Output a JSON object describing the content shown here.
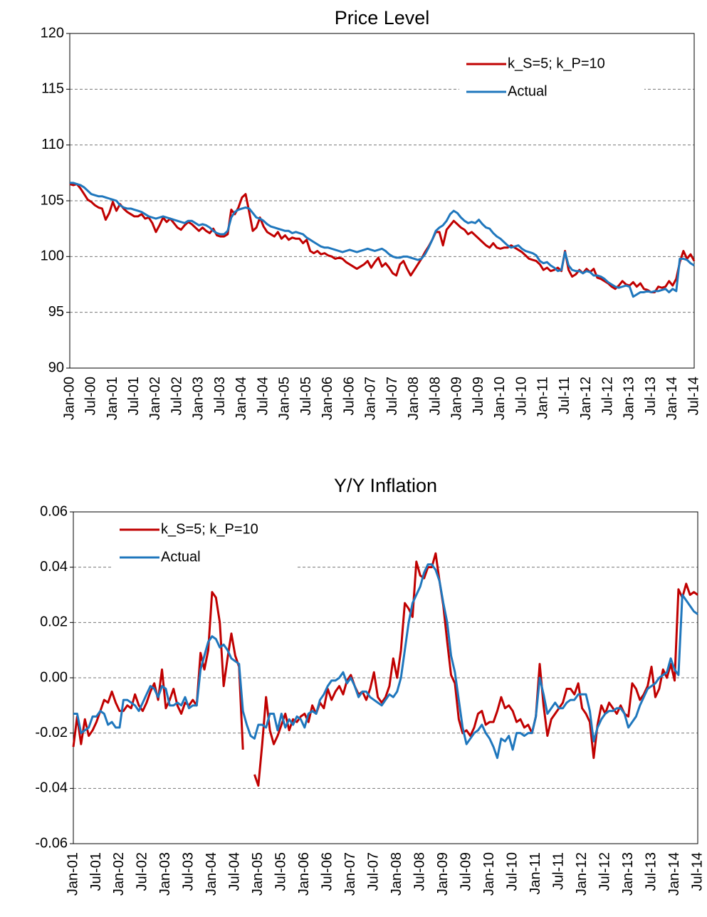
{
  "chart_data": [
    {
      "type": "line",
      "title": "Price Level",
      "grid": true,
      "legend": "upper right",
      "ylim": [
        90,
        120
      ],
      "yticks": [
        90,
        95,
        100,
        105,
        110,
        115,
        120
      ],
      "categories": [
        "Jan-00",
        null,
        null,
        null,
        null,
        null,
        "Jul-00",
        null,
        null,
        null,
        null,
        null,
        "Jan-01",
        null,
        null,
        null,
        null,
        null,
        "Jul-01",
        null,
        null,
        null,
        null,
        null,
        "Jan-02",
        null,
        null,
        null,
        null,
        null,
        "Jul-02",
        null,
        null,
        null,
        null,
        null,
        "Jan-03",
        null,
        null,
        null,
        null,
        null,
        "Jul-03",
        null,
        null,
        null,
        null,
        null,
        "Jan-04",
        null,
        null,
        null,
        null,
        null,
        "Jul-04",
        null,
        null,
        null,
        null,
        null,
        "Jan-05",
        null,
        null,
        null,
        null,
        null,
        "Jul-05",
        null,
        null,
        null,
        null,
        null,
        "Jan-06",
        null,
        null,
        null,
        null,
        null,
        "Jul-06",
        null,
        null,
        null,
        null,
        null,
        "Jan-07",
        null,
        null,
        null,
        null,
        null,
        "Jul-07",
        null,
        null,
        null,
        null,
        null,
        "Jan-08",
        null,
        null,
        null,
        null,
        null,
        "Jul-08",
        null,
        null,
        null,
        null,
        null,
        "Jan-09",
        null,
        null,
        null,
        null,
        null,
        "Jul-09",
        null,
        null,
        null,
        null,
        null,
        "Jan-10",
        null,
        null,
        null,
        null,
        null,
        "Jul-10",
        null,
        null,
        null,
        null,
        null,
        "Jan-11",
        null,
        null,
        null,
        null,
        null,
        "Jul-11",
        null,
        null,
        null,
        null,
        null,
        "Jan-12",
        null,
        null,
        null,
        null,
        null,
        "Jul-12",
        null,
        null,
        null,
        null,
        null,
        "Jan-13",
        null,
        null,
        null,
        null,
        null,
        "Jul-13",
        null,
        null,
        null,
        null,
        null,
        "Jan-14",
        null,
        null,
        null,
        null,
        null,
        "Jul-14"
      ],
      "series": [
        {
          "name": "k_S=5; k_P=10",
          "color": "#c00000",
          "values": [
            106.5,
            106.4,
            106.5,
            106.1,
            105.6,
            105.1,
            104.9,
            104.6,
            104.4,
            104.3,
            103.3,
            103.9,
            104.9,
            104.1,
            104.7,
            104.3,
            104.0,
            103.8,
            103.6,
            103.6,
            103.8,
            103.4,
            103.5,
            103.0,
            102.2,
            102.8,
            103.5,
            103.1,
            103.4,
            103.0,
            102.6,
            102.4,
            102.8,
            103.1,
            102.9,
            102.6,
            102.3,
            102.6,
            102.3,
            102.1,
            102.5,
            101.9,
            101.8,
            101.8,
            102.0,
            104.2,
            103.8,
            104.4,
            105.3,
            105.6,
            104.0,
            102.3,
            102.6,
            103.5,
            102.7,
            102.2,
            102.0,
            101.8,
            102.2,
            101.6,
            101.9,
            101.5,
            101.7,
            101.6,
            101.6,
            101.2,
            101.5,
            100.5,
            100.3,
            100.5,
            100.2,
            100.3,
            100.1,
            100.0,
            99.8,
            99.9,
            99.8,
            99.5,
            99.3,
            99.1,
            98.9,
            99.1,
            99.3,
            99.6,
            99.0,
            99.5,
            99.9,
            99.1,
            99.4,
            99.0,
            98.5,
            98.3,
            99.3,
            99.6,
            98.9,
            98.3,
            98.8,
            99.3,
            99.8,
            100.4,
            100.9,
            101.5,
            102.2,
            102.2,
            101.0,
            102.4,
            102.8,
            103.2,
            102.9,
            102.6,
            102.4,
            102.0,
            102.2,
            101.9,
            101.6,
            101.3,
            101.0,
            100.8,
            101.2,
            100.8,
            100.7,
            100.8,
            100.8,
            101.0,
            100.8,
            100.6,
            100.4,
            100.1,
            99.8,
            99.7,
            99.6,
            99.3,
            98.8,
            99.0,
            98.7,
            98.8,
            99.0,
            98.7,
            100.5,
            98.8,
            98.2,
            98.4,
            98.8,
            98.5,
            98.9,
            98.6,
            98.9,
            98.1,
            98.0,
            97.8,
            97.6,
            97.3,
            97.1,
            97.4,
            97.8,
            97.5,
            97.4,
            97.7,
            97.3,
            97.6,
            97.1,
            97.0,
            96.8,
            96.8,
            97.3,
            97.2,
            97.3,
            97.8,
            97.4,
            98.0,
            99.5,
            100.5,
            99.8,
            100.2,
            99.6
          ]
        },
        {
          "name": "Actual",
          "color": "#1f77bd",
          "values": [
            106.6,
            106.6,
            106.5,
            106.4,
            106.2,
            105.9,
            105.6,
            105.5,
            105.4,
            105.4,
            105.3,
            105.2,
            105.1,
            105.0,
            104.6,
            104.4,
            104.3,
            104.3,
            104.2,
            104.1,
            104.0,
            103.8,
            103.6,
            103.5,
            103.4,
            103.5,
            103.6,
            103.5,
            103.4,
            103.3,
            103.2,
            103.1,
            103.0,
            103.2,
            103.2,
            103.0,
            102.8,
            102.9,
            102.8,
            102.6,
            102.3,
            102.1,
            102.0,
            102.0,
            102.3,
            103.5,
            104.0,
            104.2,
            104.3,
            104.4,
            104.3,
            103.9,
            103.5,
            103.4,
            103.2,
            102.9,
            102.7,
            102.6,
            102.5,
            102.4,
            102.3,
            102.3,
            102.1,
            102.2,
            102.1,
            102.0,
            101.7,
            101.5,
            101.3,
            101.1,
            100.9,
            100.8,
            100.8,
            100.7,
            100.6,
            100.5,
            100.4,
            100.5,
            100.6,
            100.5,
            100.4,
            100.5,
            100.6,
            100.7,
            100.6,
            100.5,
            100.6,
            100.7,
            100.5,
            100.2,
            100.0,
            99.9,
            99.9,
            100.0,
            100.0,
            99.9,
            99.8,
            99.7,
            99.8,
            100.2,
            100.8,
            101.5,
            102.3,
            102.6,
            102.8,
            103.2,
            103.8,
            104.1,
            103.9,
            103.5,
            103.2,
            103.0,
            103.1,
            103.0,
            103.3,
            102.9,
            102.6,
            102.5,
            102.1,
            101.8,
            101.6,
            101.3,
            101.0,
            100.8,
            100.9,
            101.0,
            100.7,
            100.5,
            100.4,
            100.3,
            100.1,
            99.6,
            99.4,
            99.5,
            99.2,
            99.0,
            98.7,
            98.8,
            100.4,
            99.2,
            98.8,
            98.7,
            98.7,
            98.5,
            98.7,
            98.6,
            98.3,
            98.3,
            98.2,
            98.0,
            97.7,
            97.5,
            97.3,
            97.2,
            97.3,
            97.4,
            97.3,
            96.4,
            96.6,
            96.8,
            96.8,
            96.9,
            96.8,
            96.9,
            96.9,
            97.0,
            97.1,
            96.8,
            97.1,
            96.9,
            99.8,
            99.8,
            99.7,
            99.4,
            99.2
          ]
        }
      ]
    },
    {
      "type": "line",
      "title": "Y/Y Inflation",
      "grid": true,
      "legend": "upper left",
      "ylim": [
        -0.06,
        0.06
      ],
      "yticks": [
        -0.06,
        -0.04,
        -0.02,
        {
          "value": 0,
          "label": "0.00"
        },
        0.02,
        0.04,
        0.06
      ],
      "categories": [
        "Jan-01",
        null,
        null,
        null,
        null,
        null,
        "Jul-01",
        null,
        null,
        null,
        null,
        null,
        "Jan-02",
        null,
        null,
        null,
        null,
        null,
        "Jul-02",
        null,
        null,
        null,
        null,
        null,
        "Jan-03",
        null,
        null,
        null,
        null,
        null,
        "Jul-03",
        null,
        null,
        null,
        null,
        null,
        "Jan-04",
        null,
        null,
        null,
        null,
        null,
        "Jul-04",
        null,
        null,
        null,
        null,
        null,
        "Jan-05",
        null,
        null,
        null,
        null,
        null,
        "Jul-05",
        null,
        null,
        null,
        null,
        null,
        "Jan-06",
        null,
        null,
        null,
        null,
        null,
        "Jul-06",
        null,
        null,
        null,
        null,
        null,
        "Jan-07",
        null,
        null,
        null,
        null,
        null,
        "Jul-07",
        null,
        null,
        null,
        null,
        null,
        "Jan-08",
        null,
        null,
        null,
        null,
        null,
        "Jul-08",
        null,
        null,
        null,
        null,
        null,
        "Jan-09",
        null,
        null,
        null,
        null,
        null,
        "Jul-09",
        null,
        null,
        null,
        null,
        null,
        "Jan-10",
        null,
        null,
        null,
        null,
        null,
        "Jul-10",
        null,
        null,
        null,
        null,
        null,
        "Jan-11",
        null,
        null,
        null,
        null,
        null,
        "Jul-11",
        null,
        null,
        null,
        null,
        null,
        "Jan-12",
        null,
        null,
        null,
        null,
        null,
        "Jul-12",
        null,
        null,
        null,
        null,
        null,
        "Jan-13",
        null,
        null,
        null,
        null,
        null,
        "Jul-13",
        null,
        null,
        null,
        null,
        null,
        "Jan-14",
        null,
        null,
        null,
        null,
        null,
        "Jul-14"
      ],
      "series": [
        {
          "name": "k_S=5; k_P=10",
          "color": "#c00000",
          "values": [
            -0.025,
            -0.014,
            -0.024,
            -0.015,
            -0.021,
            -0.019,
            -0.016,
            -0.012,
            -0.008,
            -0.009,
            -0.005,
            -0.009,
            -0.012,
            -0.012,
            -0.01,
            -0.011,
            -0.006,
            -0.01,
            -0.012,
            -0.009,
            -0.005,
            -0.002,
            -0.008,
            0.003,
            -0.011,
            -0.008,
            -0.004,
            -0.01,
            -0.013,
            -0.009,
            -0.01,
            -0.008,
            -0.01,
            0.009,
            0.003,
            0.01,
            0.031,
            0.029,
            0.02,
            -0.003,
            0.007,
            0.016,
            0.008,
            0.004,
            -0.026,
            null,
            null,
            -0.035,
            -0.039,
            -0.024,
            -0.007,
            -0.019,
            -0.024,
            -0.021,
            -0.017,
            -0.013,
            -0.019,
            -0.015,
            -0.016,
            -0.014,
            -0.013,
            -0.016,
            -0.01,
            -0.013,
            -0.009,
            -0.011,
            -0.004,
            -0.008,
            -0.005,
            -0.003,
            -0.006,
            -0.001,
            0.001,
            -0.003,
            -0.006,
            -0.005,
            -0.008,
            -0.004,
            0.002,
            -0.007,
            -0.009,
            -0.007,
            -0.003,
            0.007,
            0.0,
            0.01,
            0.027,
            0.025,
            0.022,
            0.042,
            0.037,
            0.036,
            0.04,
            0.04,
            0.045,
            0.035,
            0.026,
            0.013,
            0.001,
            -0.002,
            -0.015,
            -0.02,
            -0.019,
            -0.021,
            -0.018,
            -0.013,
            -0.012,
            -0.017,
            -0.016,
            -0.016,
            -0.012,
            -0.007,
            -0.011,
            -0.01,
            -0.012,
            -0.016,
            -0.015,
            -0.018,
            -0.017,
            -0.02,
            -0.014,
            0.005,
            -0.01,
            -0.021,
            -0.015,
            -0.013,
            -0.011,
            -0.009,
            -0.004,
            -0.004,
            -0.006,
            -0.002,
            -0.011,
            -0.013,
            -0.016,
            -0.029,
            -0.017,
            -0.01,
            -0.013,
            -0.009,
            -0.011,
            -0.013,
            -0.01,
            -0.013,
            -0.014,
            -0.002,
            -0.004,
            -0.008,
            -0.006,
            -0.003,
            0.004,
            -0.007,
            -0.004,
            0.003,
            0.0,
            0.005,
            -0.001,
            0.032,
            0.029,
            0.034,
            0.03,
            0.031,
            0.03
          ]
        },
        {
          "name": "Actual",
          "color": "#1f77bd",
          "values": [
            -0.013,
            -0.013,
            -0.02,
            -0.019,
            -0.018,
            -0.014,
            -0.014,
            -0.012,
            -0.013,
            -0.017,
            -0.016,
            -0.018,
            -0.018,
            -0.008,
            -0.008,
            -0.009,
            -0.01,
            -0.012,
            -0.009,
            -0.006,
            -0.003,
            -0.004,
            -0.007,
            -0.003,
            -0.004,
            -0.01,
            -0.01,
            -0.009,
            -0.01,
            -0.007,
            -0.011,
            -0.01,
            -0.01,
            0.003,
            0.008,
            0.013,
            0.015,
            0.014,
            0.011,
            0.012,
            0.01,
            0.007,
            0.006,
            0.005,
            -0.012,
            -0.017,
            -0.021,
            -0.022,
            -0.017,
            -0.017,
            -0.018,
            -0.013,
            -0.013,
            -0.019,
            -0.013,
            -0.018,
            -0.015,
            -0.017,
            -0.014,
            -0.015,
            -0.018,
            -0.013,
            -0.012,
            -0.013,
            -0.008,
            -0.006,
            -0.003,
            -0.001,
            -0.001,
            0.0,
            0.002,
            -0.002,
            0.0,
            -0.003,
            -0.007,
            -0.005,
            -0.005,
            -0.007,
            -0.008,
            -0.009,
            -0.01,
            -0.008,
            -0.006,
            -0.007,
            -0.005,
            0.0,
            0.01,
            0.02,
            0.027,
            0.03,
            0.033,
            0.038,
            0.041,
            0.041,
            0.039,
            0.035,
            0.027,
            0.02,
            0.008,
            0.002,
            -0.008,
            -0.018,
            -0.024,
            -0.022,
            -0.02,
            -0.019,
            -0.017,
            -0.02,
            -0.022,
            -0.025,
            -0.029,
            -0.022,
            -0.023,
            -0.021,
            -0.026,
            -0.02,
            -0.02,
            -0.021,
            -0.02,
            -0.02,
            -0.014,
            0.0,
            -0.006,
            -0.013,
            -0.011,
            -0.009,
            -0.011,
            -0.011,
            -0.009,
            -0.008,
            -0.008,
            -0.006,
            -0.006,
            -0.006,
            -0.012,
            -0.023,
            -0.018,
            -0.015,
            -0.013,
            -0.012,
            -0.012,
            -0.011,
            -0.011,
            -0.013,
            -0.018,
            -0.016,
            -0.014,
            -0.01,
            -0.007,
            -0.004,
            -0.003,
            -0.002,
            0.0,
            0.001,
            0.002,
            0.007,
            0.003,
            0.001,
            0.03,
            0.028,
            0.026,
            0.024,
            0.023
          ]
        }
      ]
    }
  ]
}
